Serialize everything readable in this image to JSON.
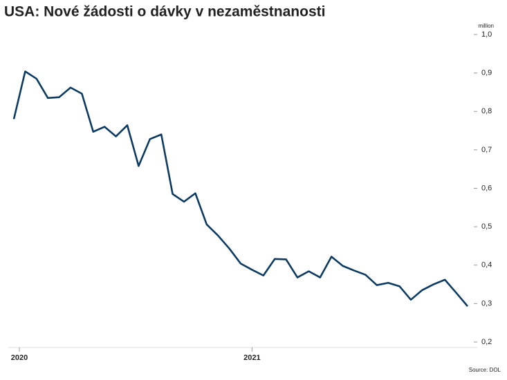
{
  "chart_data": {
    "type": "line",
    "title": "USA: Nové žádosti o dávky v nezaměstnanosti",
    "unit_label": "million",
    "source": "Source: DOL",
    "categories": [
      "2020",
      null,
      null,
      null,
      null,
      null,
      null,
      null,
      null,
      null,
      null,
      null,
      null,
      null,
      null,
      null,
      null,
      null,
      null,
      null,
      null,
      "2021",
      null,
      null,
      null,
      null,
      null,
      null,
      null,
      null,
      null,
      null,
      null,
      null,
      null,
      null,
      null,
      null,
      null,
      null,
      null
    ],
    "series": [
      {
        "name": "Nové žádosti",
        "color": "#0b3a62",
        "values": [
          0.78,
          0.904,
          0.885,
          0.835,
          0.837,
          0.862,
          0.846,
          0.747,
          0.76,
          0.735,
          0.764,
          0.658,
          0.728,
          0.74,
          0.585,
          0.565,
          0.587,
          0.506,
          0.477,
          0.443,
          0.404,
          0.388,
          0.373,
          0.416,
          0.415,
          0.368,
          0.384,
          0.368,
          0.422,
          0.398,
          0.386,
          0.375,
          0.348,
          0.354,
          0.345,
          0.31,
          0.335,
          0.35,
          0.362,
          0.328,
          0.293
        ]
      }
    ],
    "ylim": [
      0.2,
      1.0
    ],
    "yticks": [
      {
        "value": 1.0,
        "label": "1,0"
      },
      {
        "value": 0.9,
        "label": "0,9"
      },
      {
        "value": 0.8,
        "label": "0,8"
      },
      {
        "value": 0.7,
        "label": "0,7"
      },
      {
        "value": 0.6,
        "label": "0,6"
      },
      {
        "value": 0.5,
        "label": "0,5"
      },
      {
        "value": 0.4,
        "label": "0,4"
      },
      {
        "value": 0.3,
        "label": "0,3"
      },
      {
        "value": 0.2,
        "label": "0,2"
      }
    ]
  }
}
